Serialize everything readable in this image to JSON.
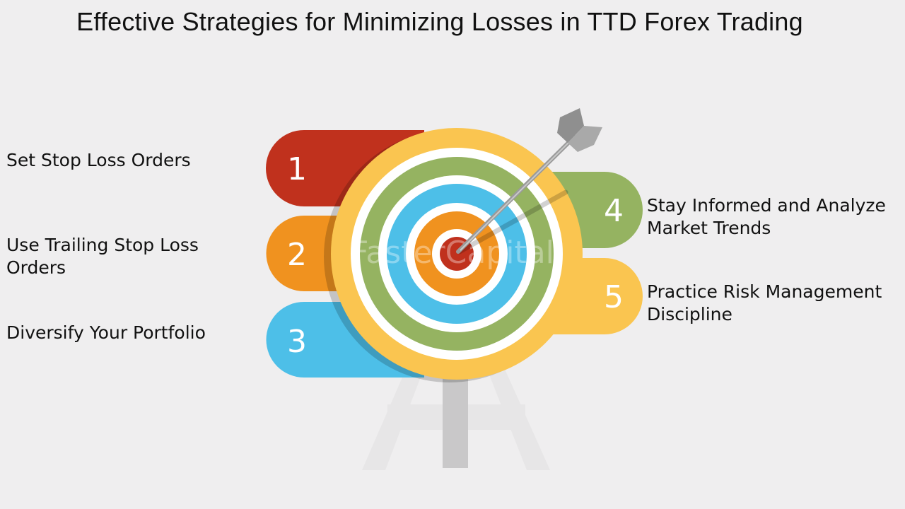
{
  "title": "Effective Strategies for Minimizing Losses in TTD Forex Trading",
  "watermark": "FasterCapital",
  "steps": [
    {
      "number": "1",
      "label": "Set Stop Loss Orders",
      "color": "#c0311d"
    },
    {
      "number": "2",
      "label": "Use Trailing Stop Loss Orders",
      "color": "#f0921f"
    },
    {
      "number": "3",
      "label": "Diversify Your Portfolio",
      "color": "#4dbfe8"
    },
    {
      "number": "4",
      "label": "Stay Informed and Analyze Market Trends",
      "color": "#95b361"
    },
    {
      "number": "5",
      "label": "Practice Risk Management Discipline",
      "color": "#fac550"
    }
  ],
  "target_colors": {
    "outer": "#fac550",
    "green": "#95b361",
    "blue": "#4dbfe8",
    "orange": "#f0921f",
    "center": "#c0311d",
    "arrow": "#9a9a9a"
  }
}
